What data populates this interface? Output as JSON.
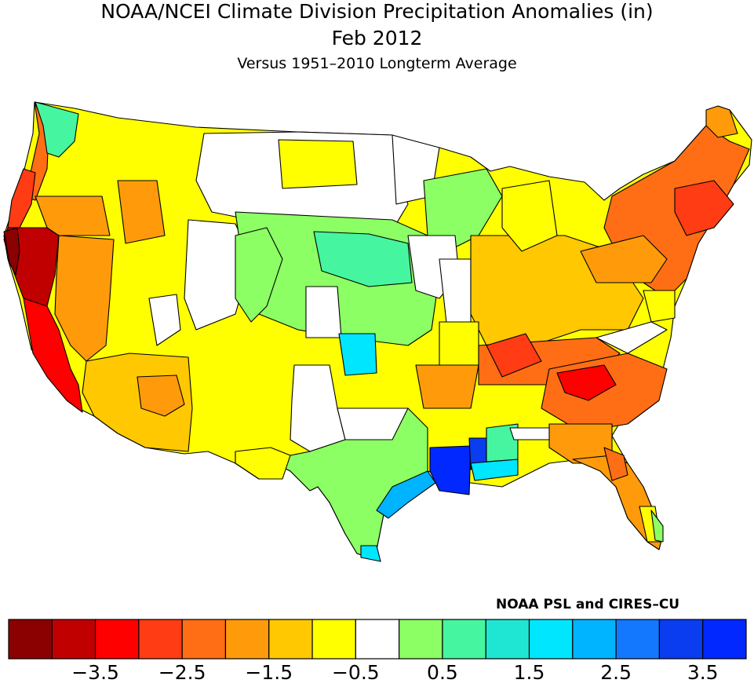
{
  "title": {
    "line1": "NOAA/NCEI Climate Division Precipitation Anomalies (in)",
    "line2": "Feb 2012",
    "line3": "Versus 1951–2010 Longterm Average"
  },
  "credit": "NOAA PSL and CIRES–CU",
  "legend": {
    "colors": [
      "#8b0000",
      "#c00000",
      "#ff0000",
      "#ff3c14",
      "#ff6e14",
      "#ff9b0a",
      "#ffc800",
      "#ffff00",
      "#ffffff",
      "#8cff64",
      "#46f5a0",
      "#1ee6d2",
      "#00e6ff",
      "#00b4ff",
      "#1478ff",
      "#0a3cf0",
      "#0028ff"
    ],
    "ticks": [
      "−3.5",
      "−2.5",
      "−1.5",
      "−0.5",
      "0.5",
      "1.5",
      "2.5",
      "3.5"
    ]
  },
  "map_regions": [
    {
      "name": "pacific-northwest-coast",
      "level": "-2.0"
    },
    {
      "name": "northern-california",
      "level": "-3.5"
    },
    {
      "name": "southern-california",
      "level": "-2.5"
    },
    {
      "name": "great-basin",
      "level": "-1.0"
    },
    {
      "name": "northern-rockies",
      "level": "-0.5"
    },
    {
      "name": "southwest",
      "level": "-1.0"
    },
    {
      "name": "northern-plains",
      "level": "0"
    },
    {
      "name": "central-plains",
      "level": "0.5"
    },
    {
      "name": "oklahoma",
      "level": "2.0"
    },
    {
      "name": "texas",
      "level": "0.5"
    },
    {
      "name": "louisiana",
      "level": "4.0"
    },
    {
      "name": "upper-midwest",
      "level": "0.5"
    },
    {
      "name": "ohio-valley",
      "level": "-1.0"
    },
    {
      "name": "southeast",
      "level": "-2.0"
    },
    {
      "name": "northeast",
      "level": "-2.0"
    },
    {
      "name": "florida",
      "level": "-1.5"
    }
  ]
}
